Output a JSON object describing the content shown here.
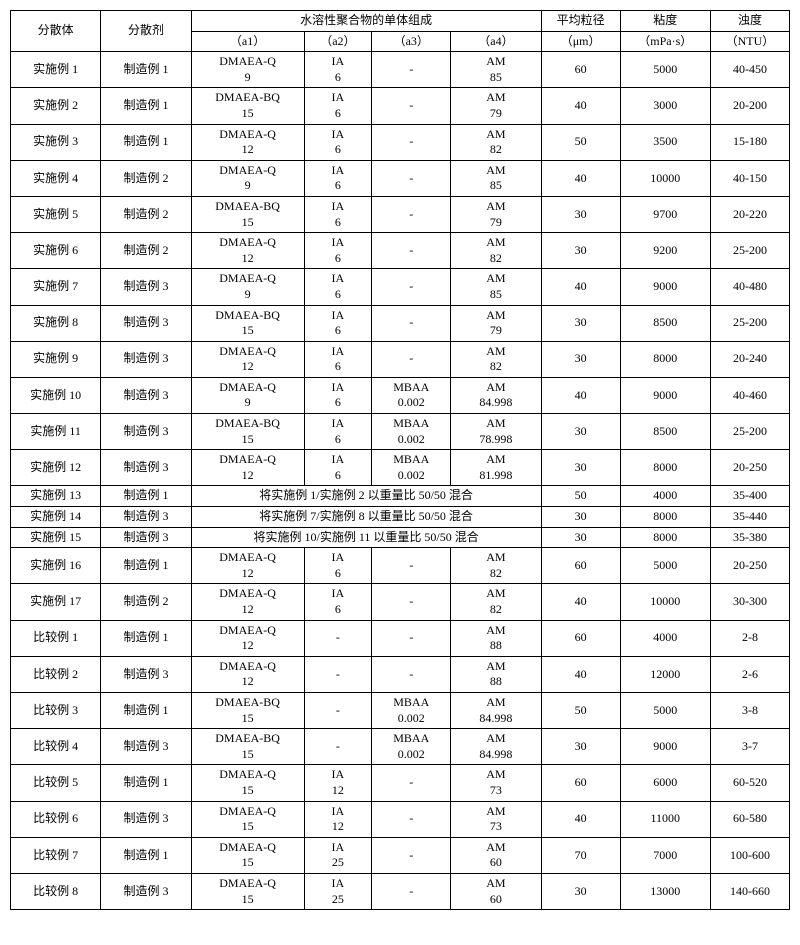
{
  "headers": {
    "h1": "分散体",
    "h2": "分散剂",
    "h3": "水溶性聚合物的单体组成",
    "h3a": "（a1）",
    "h3b": "（a2）",
    "h3c": "（a3）",
    "h3d": "（a4）",
    "h4": "平均粒径",
    "h4u": "（μm）",
    "h5": "粘度",
    "h5u": "（mPa·s）",
    "h6": "浊度",
    "h6u": "（NTU）"
  },
  "rows": [
    {
      "c0": "实施例 1",
      "c1": "制造例 1",
      "a1": "DMAEA-Q\n9",
      "a2": "IA\n6",
      "a3": "-",
      "a4": "AM\n85",
      "d": "60",
      "e": "5000",
      "f": "40-450"
    },
    {
      "c0": "实施例 2",
      "c1": "制造例 1",
      "a1": "DMAEA-BQ\n15",
      "a2": "IA\n6",
      "a3": "-",
      "a4": "AM\n79",
      "d": "40",
      "e": "3000",
      "f": "20-200"
    },
    {
      "c0": "实施例 3",
      "c1": "制造例 1",
      "a1": "DMAEA-Q\n12",
      "a2": "IA\n6",
      "a3": "-",
      "a4": "AM\n82",
      "d": "50",
      "e": "3500",
      "f": "15-180"
    },
    {
      "c0": "实施例 4",
      "c1": "制造例 2",
      "a1": "DMAEA-Q\n9",
      "a2": "IA\n6",
      "a3": "-",
      "a4": "AM\n85",
      "d": "40",
      "e": "10000",
      "f": "40-150"
    },
    {
      "c0": "实施例 5",
      "c1": "制造例 2",
      "a1": "DMAEA-BQ\n15",
      "a2": "IA\n6",
      "a3": "-",
      "a4": "AM\n79",
      "d": "30",
      "e": "9700",
      "f": "20-220"
    },
    {
      "c0": "实施例 6",
      "c1": "制造例 2",
      "a1": "DMAEA-Q\n12",
      "a2": "IA\n6",
      "a3": "-",
      "a4": "AM\n82",
      "d": "30",
      "e": "9200",
      "f": "25-200"
    },
    {
      "c0": "实施例 7",
      "c1": "制造例 3",
      "a1": "DMAEA-Q\n9",
      "a2": "IA\n6",
      "a3": "-",
      "a4": "AM\n85",
      "d": "40",
      "e": "9000",
      "f": "40-480"
    },
    {
      "c0": "实施例 8",
      "c1": "制造例 3",
      "a1": "DMAEA-BQ\n15",
      "a2": "IA\n6",
      "a3": "-",
      "a4": "AM\n79",
      "d": "30",
      "e": "8500",
      "f": "25-200"
    },
    {
      "c0": "实施例 9",
      "c1": "制造例 3",
      "a1": "DMAEA-Q\n12",
      "a2": "IA\n6",
      "a3": "-",
      "a4": "AM\n82",
      "d": "30",
      "e": "8000",
      "f": "20-240"
    },
    {
      "c0": "实施例 10",
      "c1": "制造例 3",
      "a1": "DMAEA-Q\n9",
      "a2": "IA\n6",
      "a3": "MBAA\n0.002",
      "a4": "AM\n84.998",
      "d": "40",
      "e": "9000",
      "f": "40-460"
    },
    {
      "c0": "实施例 11",
      "c1": "制造例 3",
      "a1": "DMAEA-BQ\n15",
      "a2": "IA\n6",
      "a3": "MBAA\n0.002",
      "a4": "AM\n78.998",
      "d": "30",
      "e": "8500",
      "f": "25-200"
    },
    {
      "c0": "实施例 12",
      "c1": "制造例 3",
      "a1": "DMAEA-Q\n12",
      "a2": "IA\n6",
      "a3": "MBAA\n0.002",
      "a4": "AM\n81.998",
      "d": "30",
      "e": "8000",
      "f": "20-250"
    }
  ],
  "merged_rows": [
    {
      "c0": "实施例 13",
      "c1": "制造例 1",
      "merged": "将实施例 1/实施例 2 以重量比 50/50 混合",
      "d": "50",
      "e": "4000",
      "f": "35-400"
    },
    {
      "c0": "实施例 14",
      "c1": "制造例 3",
      "merged": "将实施例 7/实施例 8 以重量比 50/50 混合",
      "d": "30",
      "e": "8000",
      "f": "35-440"
    },
    {
      "c0": "实施例 15",
      "c1": "制造例 3",
      "merged": "将实施例 10/实施例 11 以重量比 50/50 混合",
      "d": "30",
      "e": "8000",
      "f": "35-380"
    }
  ],
  "rows2": [
    {
      "c0": "实施例 16",
      "c1": "制造例 1",
      "a1": "DMAEA-Q\n12",
      "a2": "IA\n6",
      "a3": "-",
      "a4": "AM\n82",
      "d": "60",
      "e": "5000",
      "f": "20-250"
    },
    {
      "c0": "实施例 17",
      "c1": "制造例 2",
      "a1": "DMAEA-Q\n12",
      "a2": "IA\n6",
      "a3": "-",
      "a4": "AM\n82",
      "d": "40",
      "e": "10000",
      "f": "30-300"
    },
    {
      "c0": "比较例 1",
      "c1": "制造例 1",
      "a1": "DMAEA-Q\n12",
      "a2": "-",
      "a3": "-",
      "a4": "AM\n88",
      "d": "60",
      "e": "4000",
      "f": "2-8"
    },
    {
      "c0": "比较例 2",
      "c1": "制造例 3",
      "a1": "DMAEA-Q\n12",
      "a2": "-",
      "a3": "-",
      "a4": "AM\n88",
      "d": "40",
      "e": "12000",
      "f": "2-6"
    },
    {
      "c0": "比较例 3",
      "c1": "制造例 1",
      "a1": "DMAEA-BQ\n15",
      "a2": "-",
      "a3": "MBAA\n0.002",
      "a4": "AM\n84.998",
      "d": "50",
      "e": "5000",
      "f": "3-8"
    },
    {
      "c0": "比较例 4",
      "c1": "制造例 3",
      "a1": "DMAEA-BQ\n15",
      "a2": "-",
      "a3": "MBAA\n0.002",
      "a4": "AM\n84.998",
      "d": "30",
      "e": "9000",
      "f": "3-7"
    },
    {
      "c0": "比较例 5",
      "c1": "制造例 1",
      "a1": "DMAEA-Q\n15",
      "a2": "IA\n12",
      "a3": "-",
      "a4": "AM\n73",
      "d": "60",
      "e": "6000",
      "f": "60-520"
    },
    {
      "c0": "比较例 6",
      "c1": "制造例 3",
      "a1": "DMAEA-Q\n15",
      "a2": "IA\n12",
      "a3": "-",
      "a4": "AM\n73",
      "d": "40",
      "e": "11000",
      "f": "60-580"
    },
    {
      "c0": "比较例 7",
      "c1": "制造例 1",
      "a1": "DMAEA-Q\n15",
      "a2": "IA\n25",
      "a3": "-",
      "a4": "AM\n60",
      "d": "70",
      "e": "7000",
      "f": "100-600"
    },
    {
      "c0": "比较例 8",
      "c1": "制造例 3",
      "a1": "DMAEA-Q\n15",
      "a2": "IA\n25",
      "a3": "-",
      "a4": "AM\n60",
      "d": "30",
      "e": "13000",
      "f": "140-660"
    }
  ]
}
